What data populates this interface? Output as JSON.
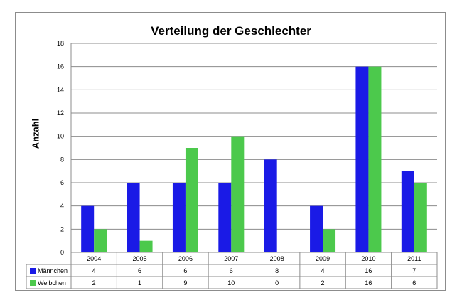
{
  "chart_data": {
    "type": "bar",
    "title": "Verteilung der Geschlechter",
    "xlabel": "",
    "ylabel": "Anzahl",
    "categories": [
      "2004",
      "2005",
      "2006",
      "2007",
      "2008",
      "2009",
      "2010",
      "2011"
    ],
    "series": [
      {
        "name": "Männchen",
        "values": [
          4,
          6,
          6,
          6,
          8,
          4,
          16,
          7
        ],
        "color": "#1a1ae6"
      },
      {
        "name": "Weibchen",
        "values": [
          2,
          1,
          9,
          10,
          0,
          2,
          16,
          6
        ],
        "color": "#4cc94c"
      }
    ],
    "ylim": [
      0,
      18
    ],
    "yticks": [
      0,
      2,
      4,
      6,
      8,
      10,
      12,
      14,
      16,
      18
    ],
    "grid": true,
    "legend": "data-table-below"
  }
}
